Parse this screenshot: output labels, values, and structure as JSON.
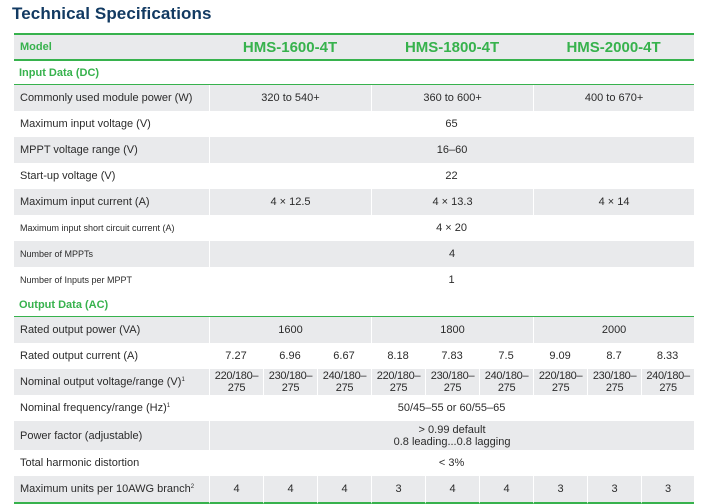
{
  "title": "Technical Specifications",
  "header": {
    "label": "Model",
    "models": [
      "HMS-1600-4T",
      "HMS-1800-4T",
      "HMS-2000-4T"
    ]
  },
  "sections": {
    "input": "Input Data (DC)",
    "output": "Output Data (AC)"
  },
  "input_rows": {
    "module_power": {
      "label": "Commonly used module power (W)",
      "values": [
        "320 to 540+",
        "360 to 600+",
        "400 to 670+"
      ]
    },
    "max_input_voltage": {
      "label": "Maximum input voltage (V)",
      "value": "65"
    },
    "mppt_range": {
      "label": "MPPT voltage range (V)",
      "value": "16–60"
    },
    "startup_voltage": {
      "label": "Start-up voltage (V)",
      "value": "22"
    },
    "max_input_current": {
      "label": "Maximum input current (A)",
      "values": [
        "4 × 12.5",
        "4 × 13.3",
        "4 × 14"
      ]
    },
    "max_short_circuit": {
      "label": "Maximum input short circuit current (A)",
      "value": "4 × 20"
    },
    "num_mppts": {
      "label": "Number of MPPTs",
      "value": "4"
    },
    "inputs_per_mppt": {
      "label": "Number of Inputs per MPPT",
      "value": "1"
    }
  },
  "output_rows": {
    "rated_power": {
      "label": "Rated output power (VA)",
      "values": [
        "1600",
        "1800",
        "2000"
      ]
    },
    "rated_current": {
      "label": "Rated output current (A)",
      "values": [
        "7.27",
        "6.96",
        "6.67",
        "8.18",
        "7.83",
        "7.5",
        "9.09",
        "8.7",
        "8.33"
      ]
    },
    "nominal_voltage": {
      "label": "Nominal output voltage/range (V)",
      "sup": "1",
      "values": [
        "220/180–275",
        "230/180–275",
        "240/180–275",
        "220/180–275",
        "230/180–275",
        "240/180–275",
        "220/180–275",
        "230/180–275",
        "240/180–275"
      ]
    },
    "nominal_frequency": {
      "label": "Nominal frequency/range (Hz)",
      "sup": "1",
      "value": "50/45–55 or 60/55–65"
    },
    "power_factor": {
      "label": "Power factor (adjustable)",
      "line1": "> 0.99 default",
      "line2": "0.8 leading...0.8 lagging"
    },
    "thd": {
      "label": "Total harmonic distortion",
      "value": "< 3%"
    },
    "max_units": {
      "label": "Maximum units per 10AWG branch",
      "sup": "2",
      "values": [
        "4",
        "4",
        "4",
        "3",
        "4",
        "4",
        "3",
        "3",
        "3"
      ]
    }
  }
}
